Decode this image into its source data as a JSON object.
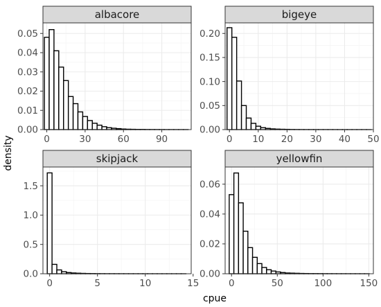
{
  "chart_data": {
    "type": "bar",
    "xlabel": "cpue",
    "ylabel": "density",
    "panels": [
      {
        "name": "albacore",
        "xlim": [
          -3,
          113
        ],
        "ylim": [
          0,
          0.0555
        ],
        "xticks": [
          0,
          30,
          60,
          90
        ],
        "yticks": [
          0.0,
          0.01,
          0.02,
          0.03,
          0.04,
          0.05
        ],
        "ytick_labels": [
          "0.00",
          "0.01",
          "0.02",
          "0.03",
          "0.04",
          "0.05"
        ],
        "bin_width": 3.75,
        "bin_start": -1.875,
        "values": [
          0.048,
          0.052,
          0.041,
          0.0325,
          0.0255,
          0.0172,
          0.0135,
          0.0092,
          0.0068,
          0.0047,
          0.0033,
          0.0023,
          0.0015,
          0.001,
          0.0007,
          0.0005,
          0.0003,
          0.0002,
          0.00015,
          0.0001,
          0.0001,
          6e-05,
          5e-05,
          4e-05,
          3e-05,
          2e-05,
          2e-05,
          1e-05,
          1e-05,
          1e-05
        ]
      },
      {
        "name": "bigeye",
        "xlim": [
          -1.5,
          50
        ],
        "ylim": [
          0,
          0.222
        ],
        "xticks": [
          0,
          10,
          20,
          30,
          40,
          50
        ],
        "yticks": [
          0.0,
          0.05,
          0.1,
          0.15,
          0.2
        ],
        "ytick_labels": [
          "0.00",
          "0.05",
          "0.10",
          "0.15",
          "0.20"
        ],
        "bin_width": 1.67,
        "bin_start": -0.835,
        "values": [
          0.212,
          0.192,
          0.101,
          0.05,
          0.024,
          0.013,
          0.007,
          0.004,
          0.0025,
          0.0015,
          0.001,
          0.0007,
          0.0005,
          0.0003,
          0.0002,
          0.00015,
          0.0001,
          0.0001,
          8e-05,
          6e-05,
          5e-05,
          4e-05,
          3e-05,
          2e-05,
          2e-05,
          2e-05,
          1e-05,
          1e-05,
          1e-05,
          1e-05
        ]
      },
      {
        "name": "skipjack",
        "xlim": [
          -0.7,
          14.8
        ],
        "ylim": [
          0,
          1.82
        ],
        "xticks": [
          0,
          5,
          10,
          15
        ],
        "yticks": [
          0.0,
          0.5,
          1.0,
          1.5
        ],
        "ytick_labels": [
          "0.0",
          "0.5",
          "1.0",
          "1.5"
        ],
        "bin_width": 0.5,
        "bin_start": -0.25,
        "values": [
          1.72,
          0.16,
          0.065,
          0.035,
          0.02,
          0.013,
          0.009,
          0.006,
          0.004,
          0.003,
          0.002,
          0.0015,
          0.001,
          0.001,
          0.0008,
          0.0006,
          0.0005,
          0.0004,
          0.0003,
          0.0003,
          0.0002,
          0.0002,
          0.0002,
          0.0001,
          0.0001,
          0.0001,
          0.0001,
          0.0001,
          0.0001
        ]
      },
      {
        "name": "yellowfin",
        "xlim": [
          -7,
          155
        ],
        "ylim": [
          0,
          0.0715
        ],
        "xticks": [
          0,
          50,
          100,
          150
        ],
        "yticks": [
          0.0,
          0.02,
          0.04,
          0.06
        ],
        "ytick_labels": [
          "0.00",
          "0.02",
          "0.04",
          "0.06"
        ],
        "bin_width": 5.1,
        "bin_start": -2.55,
        "values": [
          0.053,
          0.0675,
          0.0475,
          0.0285,
          0.0175,
          0.011,
          0.0068,
          0.0042,
          0.0027,
          0.0018,
          0.0012,
          0.0008,
          0.0005,
          0.0004,
          0.0003,
          0.0002,
          0.00015,
          0.0001,
          0.0001,
          8e-05,
          6e-05,
          5e-05,
          4e-05,
          3e-05,
          3e-05,
          2e-05,
          2e-05,
          2e-05,
          1e-05,
          1e-05
        ]
      }
    ]
  }
}
